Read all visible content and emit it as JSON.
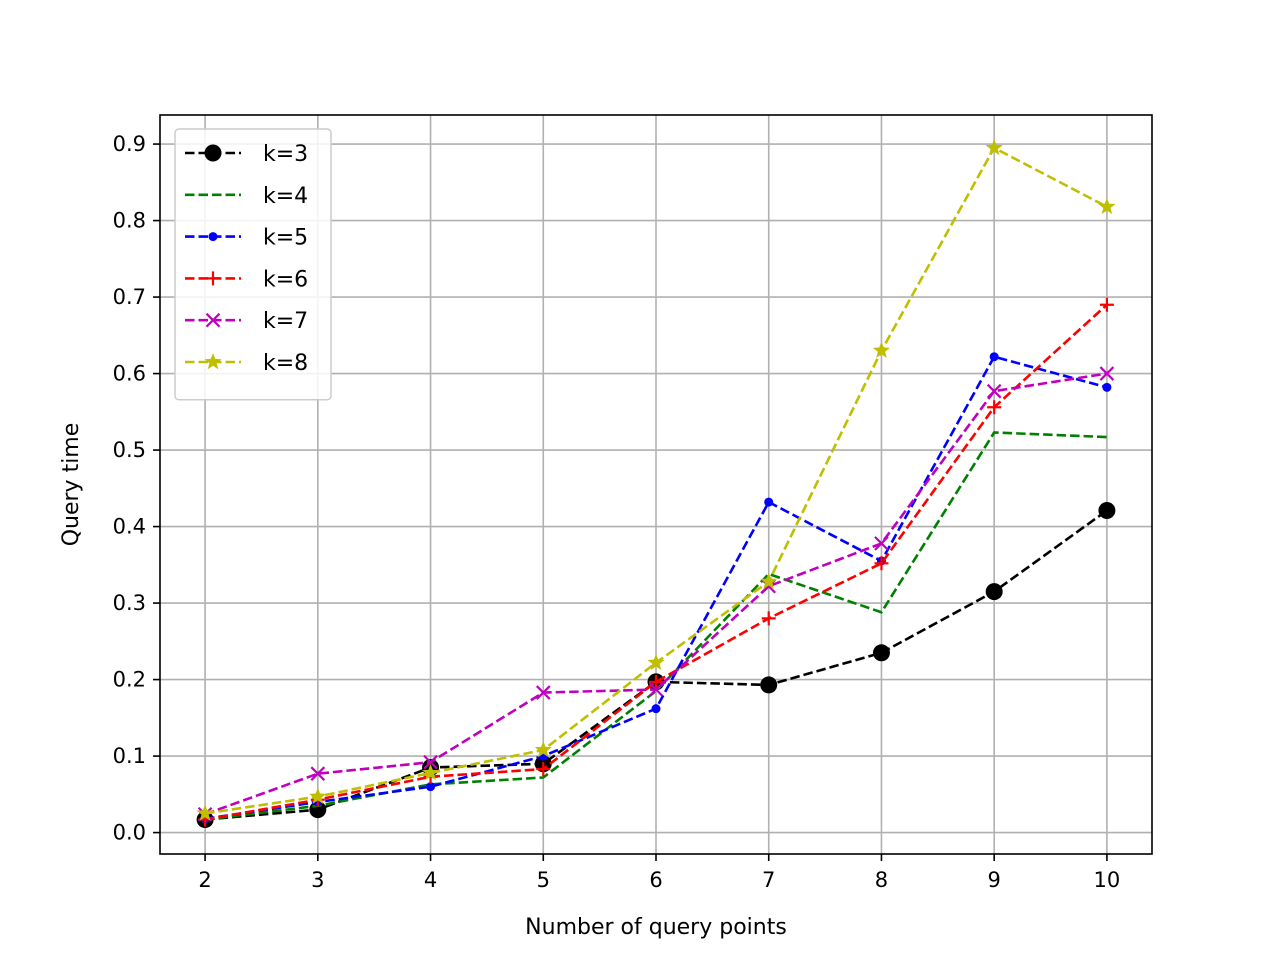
{
  "chart_data": {
    "type": "line",
    "title": "",
    "xlabel": "Number of query points",
    "ylabel": "Query time",
    "x": [
      2,
      3,
      4,
      5,
      6,
      7,
      8,
      9,
      10
    ],
    "xlim": [
      1.6,
      10.4
    ],
    "ylim": [
      -0.028,
      0.938
    ],
    "xticks": [
      "2",
      "3",
      "4",
      "5",
      "6",
      "7",
      "8",
      "9",
      "10"
    ],
    "yticks": [
      "0.0",
      "0.1",
      "0.2",
      "0.3",
      "0.4",
      "0.5",
      "0.6",
      "0.7",
      "0.8",
      "0.9"
    ],
    "grid": true,
    "legend_position": "top-left",
    "series": [
      {
        "name": "k=3",
        "color": "#000000",
        "marker": "circle",
        "values": [
          0.017,
          0.03,
          0.085,
          0.09,
          0.197,
          0.193,
          0.235,
          0.315,
          0.421
        ]
      },
      {
        "name": "k=4",
        "color": "#008000",
        "marker": "none",
        "values": [
          0.017,
          0.035,
          0.063,
          0.072,
          0.185,
          0.338,
          0.288,
          0.523,
          0.517
        ]
      },
      {
        "name": "k=5",
        "color": "#0000ff",
        "marker": "point",
        "values": [
          0.018,
          0.04,
          0.06,
          0.1,
          0.162,
          0.432,
          0.355,
          0.622,
          0.582
        ]
      },
      {
        "name": "k=6",
        "color": "#ff0000",
        "marker": "plus",
        "values": [
          0.017,
          0.043,
          0.073,
          0.083,
          0.197,
          0.28,
          0.352,
          0.556,
          0.69
        ]
      },
      {
        "name": "k=7",
        "color": "#bf00bf",
        "marker": "x",
        "values": [
          0.024,
          0.077,
          0.092,
          0.183,
          0.187,
          0.322,
          0.378,
          0.577,
          0.6
        ]
      },
      {
        "name": "k=8",
        "color": "#bfbf00",
        "marker": "star",
        "values": [
          0.025,
          0.047,
          0.078,
          0.108,
          0.222,
          0.328,
          0.63,
          0.895,
          0.818
        ]
      }
    ]
  }
}
